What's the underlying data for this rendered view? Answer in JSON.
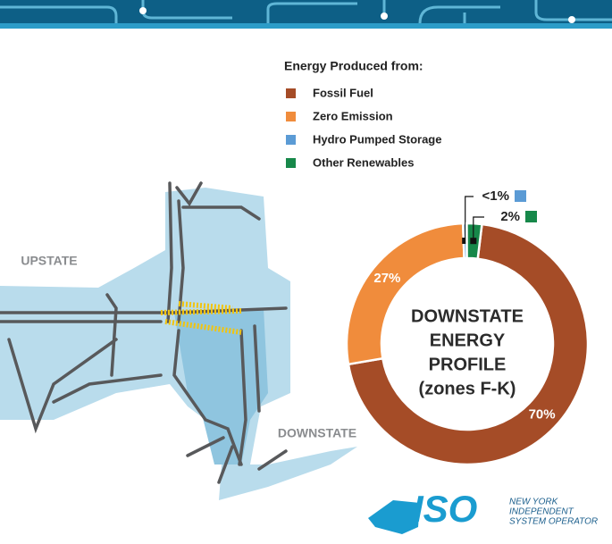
{
  "chart_data": {
    "type": "donut",
    "legend_title": "Energy Produced from:",
    "center_label": [
      "DOWNSTATE",
      "ENERGY",
      "PROFILE",
      "(zones F-K)"
    ],
    "categories": [
      "Fossil Fuel",
      "Zero Emission",
      "Hydro Pumped Storage",
      "Other Renewables"
    ],
    "values": [
      70,
      27,
      0.5,
      2
    ],
    "value_labels": [
      "70%",
      "27%",
      "<1%",
      "2%"
    ],
    "colors": [
      "#a54c27",
      "#f08c3c",
      "#5b9bd5",
      "#17884a"
    ]
  },
  "map": {
    "upstate_label": "UPSTATE",
    "downstate_label": "DOWNSTATE"
  },
  "logo": {
    "mark": "ISO",
    "lines": [
      "NEW YORK",
      "INDEPENDENT",
      "SYSTEM OPERATOR"
    ]
  }
}
